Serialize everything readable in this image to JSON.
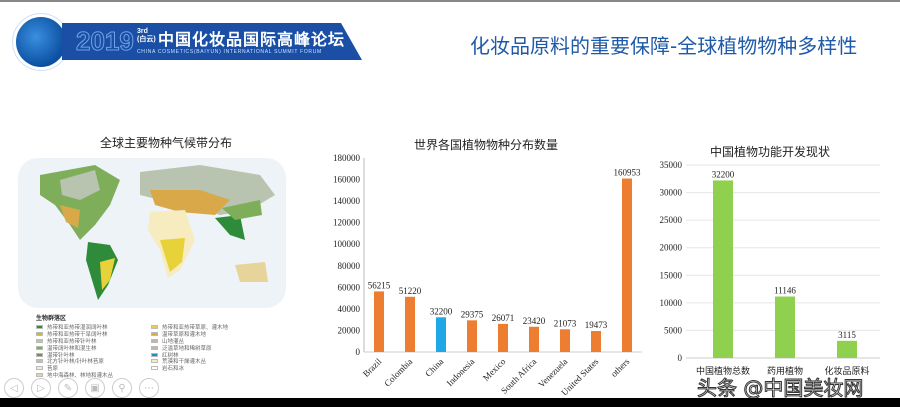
{
  "header": {
    "logo_year": "2019",
    "logo_edition": "3rd",
    "logo_edition_sub": "(白云)",
    "logo_title_cn": "中国化妆品国际高峰论坛",
    "logo_title_en": "CHINA COSMETICS(BAIYUN) INTERNATIONAL SUMMIT FORUM",
    "slide_title": "化妆品原料的重要保障-全球植物物种多样性"
  },
  "map": {
    "title": "全球主要物种气候带分布",
    "legend_title": "生物群落区",
    "legend_left": [
      {
        "label": "热带和亚热带湿润阔叶林",
        "color": "#2e8b3a"
      },
      {
        "label": "热带和亚热带干旱阔叶林",
        "color": "#c8b832"
      },
      {
        "label": "热带和亚热带针叶林",
        "color": "#b7c7a0"
      },
      {
        "label": "温带阔叶林和混生林",
        "color": "#7fae5a"
      },
      {
        "label": "温带针叶林",
        "color": "#8a7f62"
      },
      {
        "label": "北方针叶林/针叶林苔原",
        "color": "#b8c4b0"
      },
      {
        "label": "苔原",
        "color": "#e8ecd8"
      },
      {
        "label": "地中海森林、林地和灌木丛",
        "color": "#e6d49a"
      }
    ],
    "legend_right": [
      {
        "label": "热带和亚热带草原、灌木地",
        "color": "#e8d23a"
      },
      {
        "label": "温带草原和灌木地",
        "color": "#d9a848"
      },
      {
        "label": "山地灌丛",
        "color": "#c8b49a"
      },
      {
        "label": "泛滥草地和稀树草原",
        "color": "#b9b9b0"
      },
      {
        "label": "红树林",
        "color": "#1f8fb5"
      },
      {
        "label": "荒漠和干燥灌木丛",
        "color": "#f6ecc0"
      },
      {
        "label": "岩石和冰",
        "color": "#ffffff"
      }
    ]
  },
  "chart_data": [
    {
      "type": "bar",
      "title": "世界各国植物物种分布数量",
      "categories": [
        "Brazil",
        "Colombia",
        "China",
        "Indonesia",
        "Mexico",
        "South Africa",
        "Venezuela",
        "United States",
        "others"
      ],
      "values": [
        56215,
        51220,
        32200,
        29375,
        26071,
        23420,
        21073,
        19473,
        160953
      ],
      "colors": [
        "#ed7d31",
        "#ed7d31",
        "#1fa7e8",
        "#ed7d31",
        "#ed7d31",
        "#ed7d31",
        "#ed7d31",
        "#ed7d31",
        "#ed7d31"
      ],
      "ylim": [
        0,
        180000
      ],
      "yticks": [
        0,
        20000,
        40000,
        60000,
        80000,
        100000,
        120000,
        140000,
        160000,
        180000
      ],
      "grid": false
    },
    {
      "type": "bar",
      "title": "中国植物功能开发现状",
      "categories": [
        "中国植物总数",
        "药用植物",
        "化妆品原料"
      ],
      "values": [
        32200,
        11146,
        3115
      ],
      "colors": [
        "#8fd14f",
        "#8fd14f",
        "#8fd14f"
      ],
      "ylim": [
        0,
        35000
      ],
      "yticks": [
        0,
        5000,
        10000,
        15000,
        20000,
        25000,
        30000,
        35000
      ],
      "grid": true
    }
  ],
  "nav_icons": [
    "previous-icon",
    "next-icon",
    "pen-icon",
    "slides-icon",
    "zoom-icon",
    "more-icon"
  ],
  "watermark": "头条 @中国美妆网"
}
